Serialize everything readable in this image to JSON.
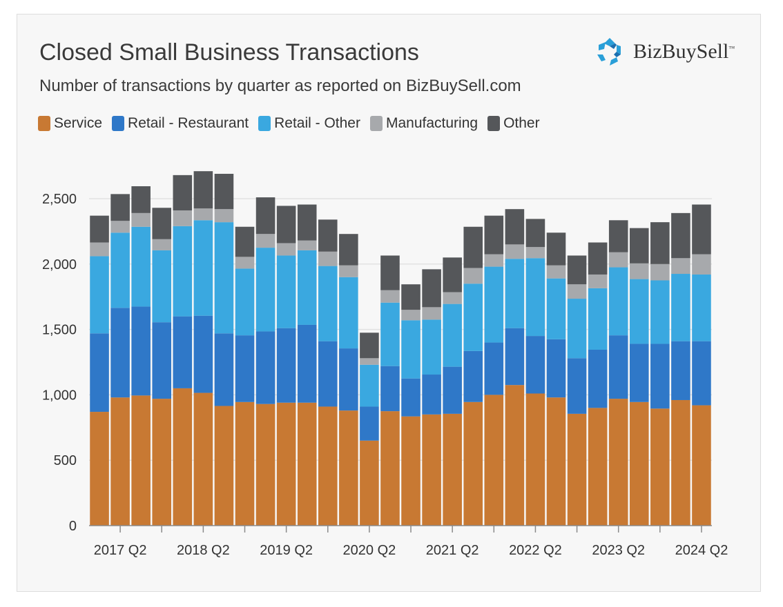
{
  "header": {
    "title": "Closed Small Business Transactions",
    "subtitle": "Number of transactions by quarter as reported on BizBuySell.com"
  },
  "logo": {
    "text": "BizBuySell",
    "trademark": "™"
  },
  "legend": [
    {
      "label": "Service",
      "color": "#c87933"
    },
    {
      "label": "Retail - Restaurant",
      "color": "#2f78c8"
    },
    {
      "label": "Retail - Other",
      "color": "#3aa8e0"
    },
    {
      "label": "Manufacturing",
      "color": "#a7a9ac"
    },
    {
      "label": "Other",
      "color": "#55575a"
    }
  ],
  "chart_data": {
    "type": "bar",
    "stacked": true,
    "title": "Closed Small Business Transactions",
    "subtitle": "Number of transactions by quarter as reported on BizBuySell.com",
    "xlabel": "",
    "ylabel": "",
    "ylim": [
      0,
      2500
    ],
    "yticks": [
      0,
      500,
      1000,
      1500,
      2000,
      2500
    ],
    "ytick_labels": [
      "0",
      "500",
      "1,000",
      "1,500",
      "2,000",
      "2,500"
    ],
    "grid": true,
    "legend_position": "top-left",
    "xtick_labels": [
      "2017 Q2",
      "2018 Q2",
      "2019 Q2",
      "2020 Q2",
      "2021 Q2",
      "2022 Q2",
      "2023 Q2",
      "2024 Q2"
    ],
    "xtick_label_indices": [
      1,
      5,
      9,
      13,
      17,
      21,
      25,
      29
    ],
    "categories": [
      "2017 Q1",
      "2017 Q2",
      "2017 Q3",
      "2017 Q4",
      "2018 Q1",
      "2018 Q2",
      "2018 Q3",
      "2018 Q4",
      "2019 Q1",
      "2019 Q2",
      "2019 Q3",
      "2019 Q4",
      "2020 Q1",
      "2020 Q2",
      "2020 Q3",
      "2020 Q4",
      "2021 Q1",
      "2021 Q2",
      "2021 Q3",
      "2021 Q4",
      "2022 Q1",
      "2022 Q2",
      "2022 Q3",
      "2022 Q4",
      "2023 Q1",
      "2023 Q2",
      "2023 Q3",
      "2023 Q4",
      "2024 Q1",
      "2024 Q2"
    ],
    "series": [
      {
        "name": "Service",
        "color": "#c87933",
        "values": [
          870,
          980,
          995,
          970,
          1050,
          1015,
          915,
          945,
          930,
          940,
          940,
          910,
          880,
          650,
          875,
          835,
          850,
          855,
          945,
          1000,
          1075,
          1010,
          980,
          855,
          900,
          970,
          945,
          895,
          960,
          920
        ]
      },
      {
        "name": "Retail - Restaurant",
        "color": "#2f78c8",
        "values": [
          600,
          685,
          680,
          585,
          550,
          590,
          555,
          510,
          555,
          570,
          595,
          500,
          475,
          260,
          345,
          290,
          305,
          360,
          390,
          400,
          435,
          440,
          445,
          425,
          445,
          485,
          445,
          495,
          450,
          490
        ]
      },
      {
        "name": "Retail - Other",
        "color": "#3aa8e0",
        "values": [
          590,
          575,
          610,
          550,
          690,
          730,
          850,
          510,
          640,
          555,
          570,
          575,
          545,
          320,
          485,
          445,
          420,
          480,
          515,
          580,
          530,
          595,
          465,
          455,
          470,
          520,
          495,
          485,
          515,
          510
        ]
      },
      {
        "name": "Manufacturing",
        "color": "#a7a9ac",
        "values": [
          105,
          90,
          105,
          85,
          120,
          90,
          100,
          90,
          105,
          95,
          75,
          110,
          90,
          50,
          95,
          80,
          95,
          90,
          120,
          95,
          110,
          85,
          100,
          110,
          105,
          115,
          120,
          125,
          120,
          155
        ]
      },
      {
        "name": "Other",
        "color": "#55575a",
        "values": [
          205,
          205,
          205,
          240,
          270,
          285,
          270,
          230,
          280,
          285,
          275,
          245,
          240,
          195,
          265,
          195,
          290,
          265,
          315,
          295,
          270,
          215,
          250,
          220,
          245,
          245,
          270,
          320,
          345,
          380
        ]
      }
    ]
  }
}
